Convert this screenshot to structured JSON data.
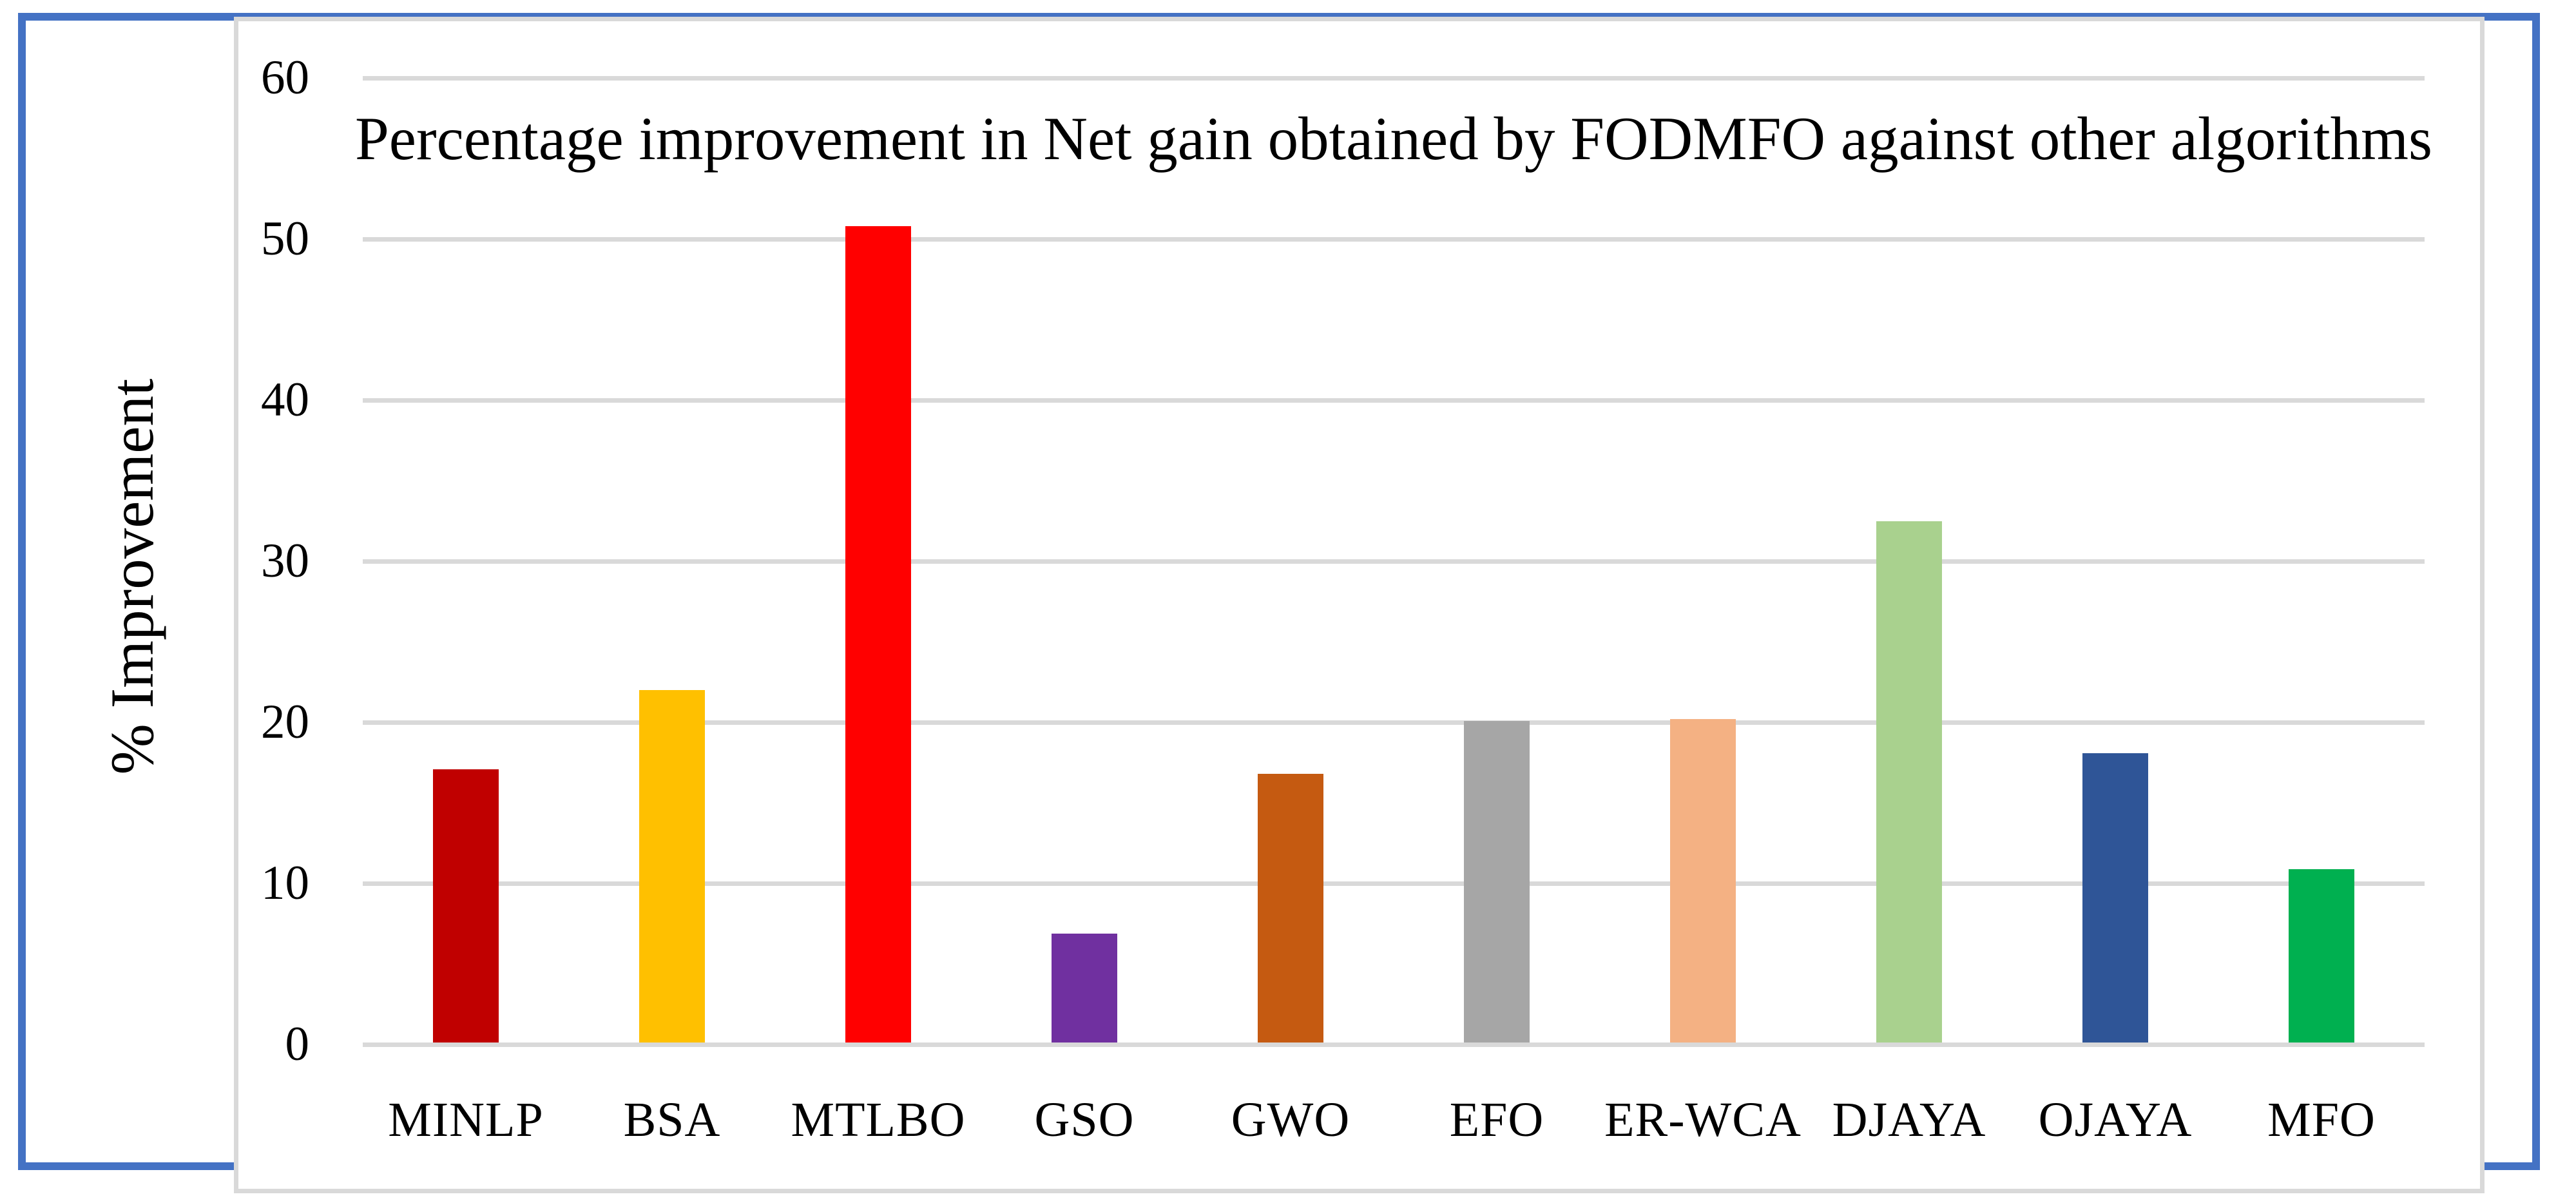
{
  "chart_data": {
    "type": "bar",
    "title": "Percentage improvement in Net gain obtained by FODMFO against other algorithms",
    "xlabel": "",
    "ylabel": "% Improvement",
    "categories": [
      "MINLP",
      "BSA",
      "MTLBO",
      "GSO",
      "GWO",
      "EFO",
      "ER-WCA",
      "DJAYA",
      "OJAYA",
      "MFO"
    ],
    "values": [
      17.1,
      22.0,
      50.8,
      6.9,
      16.8,
      20.1,
      20.2,
      32.5,
      18.1,
      10.9
    ],
    "bar_colors": [
      "#C00000",
      "#FFC000",
      "#FF0000",
      "#7030A0",
      "#C55A11",
      "#A6A6A6",
      "#F4B183",
      "#A9D18E",
      "#2F5597",
      "#00B050"
    ],
    "ylim": [
      0,
      60
    ],
    "yticks": [
      0,
      10,
      20,
      30,
      40,
      50,
      60
    ],
    "grid": "horizontal",
    "legend": "none",
    "gridline_color": "#D9D9D9",
    "axis_line_color": "#D9D9D9",
    "frame_border_color": "#4472C4",
    "panel_border_color": "#D9D9D9",
    "text_color": "#000000",
    "background_color": "#FFFFFF"
  }
}
